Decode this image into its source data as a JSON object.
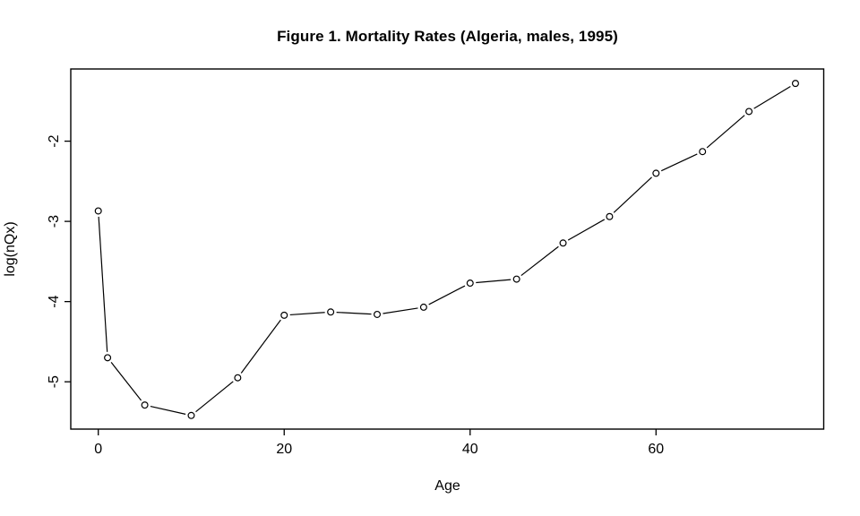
{
  "chart_data": {
    "type": "line",
    "title": "Figure 1. Mortality Rates (Algeria, males, 1995)",
    "xlabel": "Age",
    "ylabel": "log(nQx)",
    "x": [
      0,
      1,
      5,
      10,
      15,
      20,
      25,
      30,
      35,
      40,
      45,
      50,
      55,
      60,
      65,
      70,
      75
    ],
    "y": [
      -2.87,
      -4.7,
      -5.29,
      -5.42,
      -4.95,
      -4.17,
      -4.13,
      -4.16,
      -4.07,
      -3.77,
      -3.72,
      -3.27,
      -2.94,
      -2.4,
      -2.13,
      -1.63,
      -1.28
    ],
    "x_ticks": [
      0,
      20,
      40,
      60
    ],
    "y_ticks": [
      -5,
      -4,
      -3,
      -2
    ],
    "xlim": [
      -2.96,
      78.04
    ],
    "ylim": [
      -5.59,
      -1.1
    ],
    "marker": "open-circle",
    "line_style": "points-with-gapped-segments",
    "line_color": "#000000",
    "marker_color": "#000000",
    "background_color": "#ffffff",
    "grid": false,
    "legend": "none"
  }
}
